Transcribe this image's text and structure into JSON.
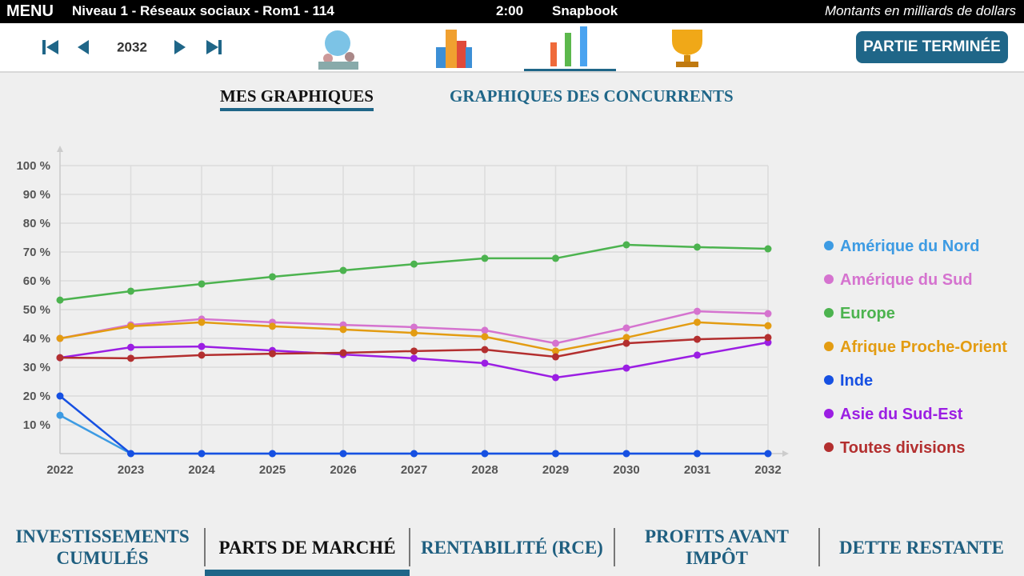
{
  "topbar": {
    "menu": "MENU",
    "level": "Niveau 1 - Réseaux sociaux - Rom1 - 114",
    "timer": "2:00",
    "company": "Snapbook",
    "units": "Montants en milliards de dollars"
  },
  "nav": {
    "year": "2032",
    "end_button": "PARTIE TERMINÉE"
  },
  "tabs": [
    "MES GRAPHIQUES",
    "GRAPHIQUES DES CONCURRENTS"
  ],
  "bottom_tabs": [
    [
      "INVESTISSEMENTS",
      "CUMULÉS"
    ],
    [
      "PARTS DE MARCHÉ"
    ],
    [
      "RENTABILITÉ (RCE)"
    ],
    [
      "PROFITS AVANT",
      "IMPÔT"
    ],
    [
      "DETTE RESTANTE"
    ]
  ],
  "chart_data": {
    "type": "line",
    "categories": [
      "2022",
      "2023",
      "2024",
      "2025",
      "2026",
      "2027",
      "2028",
      "2029",
      "2030",
      "2031",
      "2032"
    ],
    "ylim": [
      0,
      100
    ],
    "yticks": [
      {
        "value": 10,
        "label": "10 %"
      },
      {
        "value": 20,
        "label": "20 %"
      },
      {
        "value": 30,
        "label": "30 %"
      },
      {
        "value": 40,
        "label": "40 %"
      },
      {
        "value": 50,
        "label": "50 %"
      },
      {
        "value": 60,
        "label": "60 %"
      },
      {
        "value": 70,
        "label": "70 %"
      },
      {
        "value": 80,
        "label": "80 %"
      },
      {
        "value": 90,
        "label": "90 %"
      },
      {
        "value": 100,
        "label": "100 %"
      }
    ],
    "grid": true,
    "legend": "right",
    "series": [
      {
        "name": "Amérique du Nord",
        "color": "#3d9be3",
        "values": [
          13.3,
          0,
          0,
          0,
          0,
          0,
          0,
          0,
          0,
          0,
          0
        ]
      },
      {
        "name": "Amérique du Sud",
        "color": "#d573cf",
        "values": [
          40,
          44.7,
          46.7,
          45.6,
          44.7,
          43.9,
          42.8,
          38.3,
          43.6,
          49.4,
          48.6
        ]
      },
      {
        "name": "Europe",
        "color": "#4cb34f",
        "values": [
          53.3,
          56.4,
          58.9,
          61.4,
          63.6,
          65.8,
          67.8,
          67.8,
          72.5,
          71.7,
          71.1
        ]
      },
      {
        "name": "Afrique Proche-Orient",
        "color": "#e39c12",
        "values": [
          40,
          44.2,
          45.6,
          44.2,
          43.1,
          41.9,
          40.6,
          35.6,
          40.3,
          45.6,
          44.4
        ]
      },
      {
        "name": "Inde",
        "color": "#1650e2",
        "values": [
          20,
          0,
          0,
          0,
          0,
          0,
          0,
          0,
          0,
          0,
          0
        ]
      },
      {
        "name": "Asie du Sud-Est",
        "color": "#9b1ee3",
        "values": [
          33.3,
          36.9,
          37.2,
          35.8,
          34.4,
          33.1,
          31.4,
          26.4,
          29.7,
          34.2,
          38.6
        ]
      },
      {
        "name": "Toutes divisions",
        "color": "#b32f2f",
        "values": [
          33.3,
          33.1,
          34.2,
          34.7,
          35,
          35.6,
          36.1,
          33.6,
          38.3,
          39.7,
          40.3
        ]
      }
    ]
  }
}
